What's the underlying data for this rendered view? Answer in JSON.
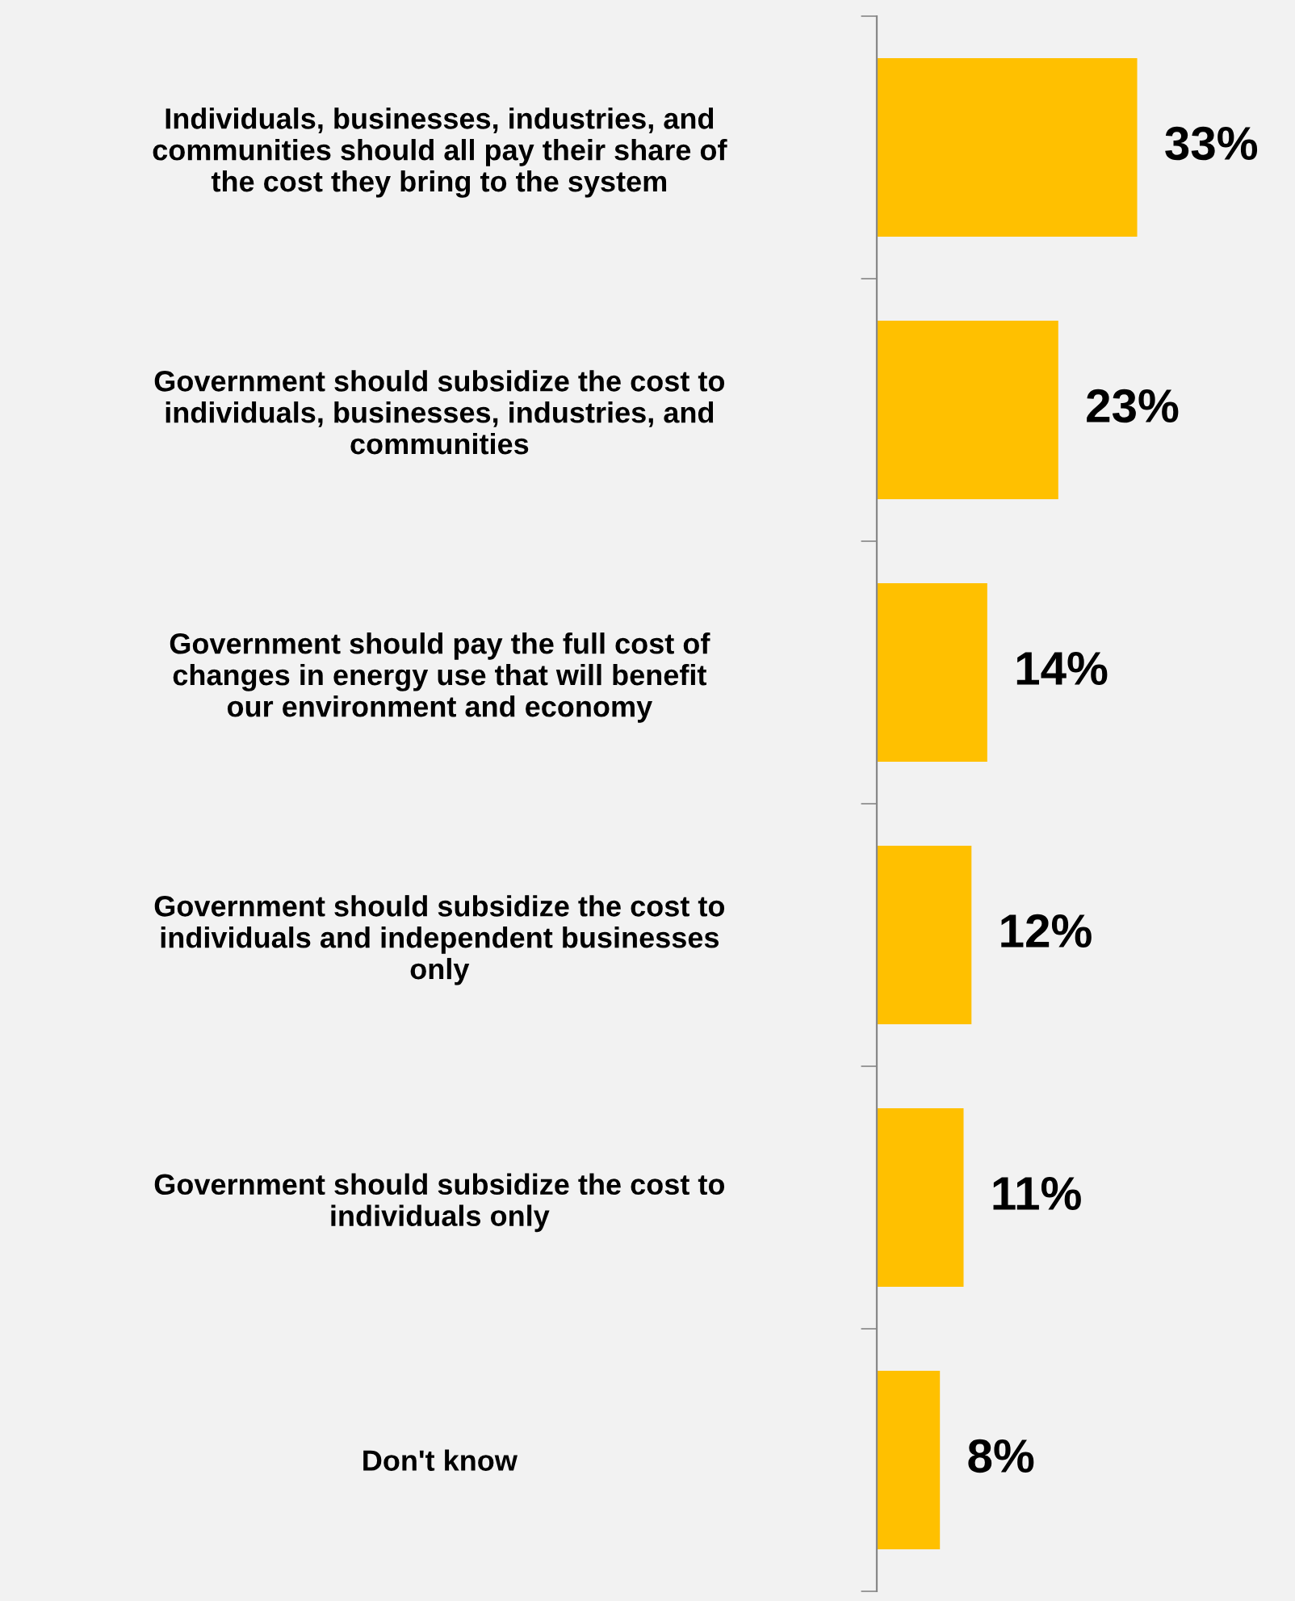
{
  "chart_data": {
    "type": "bar",
    "orientation": "horizontal",
    "categories": [
      "Individuals, businesses, industries, and\ncommunities should all pay their share of\nthe cost they bring to the system",
      "Government should subsidize the cost to\nindividuals, businesses, industries, and\ncommunities",
      "Government should pay the full cost of\nchanges in energy use that will benefit\nour environment and economy",
      "Government should subsidize the cost to\nindividuals and independent businesses\nonly",
      "Government should subsidize the cost to\nindividuals only",
      "Don't know"
    ],
    "values": [
      33,
      23,
      14,
      12,
      11,
      8
    ],
    "value_labels": [
      "33%",
      "23%",
      "14%",
      "12%",
      "11%",
      "8%"
    ],
    "color": "#ffc000",
    "xlim": [
      0,
      53
    ],
    "grid": false,
    "legend": false
  }
}
